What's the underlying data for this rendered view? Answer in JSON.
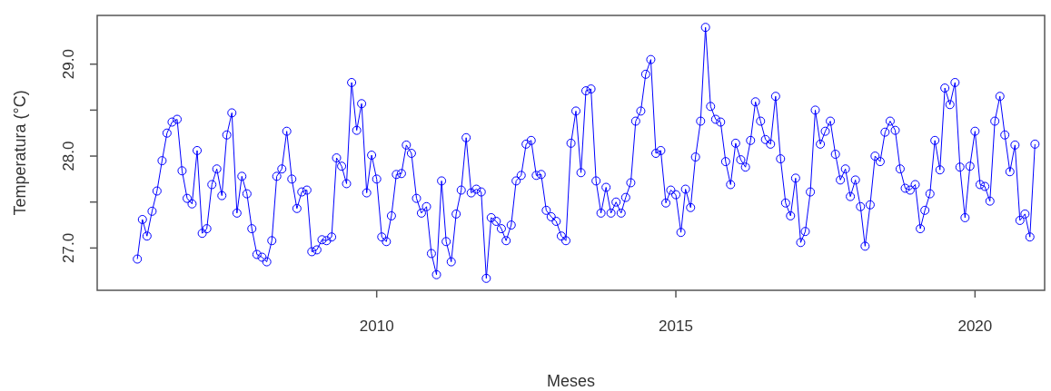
{
  "chart_data": {
    "type": "line",
    "xlabel": "Meses",
    "ylabel": "Temperatura (°C)",
    "x": [
      "2006-01",
      "2006-02",
      "2006-03",
      "2006-04",
      "2006-05",
      "2006-06",
      "2006-07",
      "2006-08",
      "2006-09",
      "2006-10",
      "2006-11",
      "2006-12",
      "2007-01",
      "2007-02",
      "2007-03",
      "2007-04",
      "2007-05",
      "2007-06",
      "2007-07",
      "2007-08",
      "2007-09",
      "2007-10",
      "2007-11",
      "2007-12",
      "2008-01",
      "2008-02",
      "2008-03",
      "2008-04",
      "2008-05",
      "2008-06",
      "2008-07",
      "2008-08",
      "2008-09",
      "2008-10",
      "2008-11",
      "2008-12",
      "2009-01",
      "2009-02",
      "2009-03",
      "2009-04",
      "2009-05",
      "2009-06",
      "2009-07",
      "2009-08",
      "2009-09",
      "2009-10",
      "2009-11",
      "2009-12",
      "2010-01",
      "2010-02",
      "2010-03",
      "2010-04",
      "2010-05",
      "2010-06",
      "2010-07",
      "2010-08",
      "2010-09",
      "2010-10",
      "2010-11",
      "2010-12",
      "2011-01",
      "2011-02",
      "2011-03",
      "2011-04",
      "2011-05",
      "2011-06",
      "2011-07",
      "2011-08",
      "2011-09",
      "2011-10",
      "2011-11",
      "2011-12",
      "2012-01",
      "2012-02",
      "2012-03",
      "2012-04",
      "2012-05",
      "2012-06",
      "2012-07",
      "2012-08",
      "2012-09",
      "2012-10",
      "2012-11",
      "2012-12",
      "2013-01",
      "2013-02",
      "2013-03",
      "2013-04",
      "2013-05",
      "2013-06",
      "2013-07",
      "2013-08",
      "2013-09",
      "2013-10",
      "2013-11",
      "2013-12",
      "2014-01",
      "2014-02",
      "2014-03",
      "2014-04",
      "2014-05",
      "2014-06",
      "2014-07",
      "2014-08",
      "2014-09",
      "2014-10",
      "2014-11",
      "2014-12",
      "2015-01",
      "2015-02",
      "2015-03",
      "2015-04",
      "2015-05",
      "2015-06",
      "2015-07",
      "2015-08",
      "2015-09",
      "2015-10",
      "2015-11",
      "2015-12",
      "2016-01",
      "2016-02",
      "2016-03",
      "2016-04",
      "2016-05",
      "2016-06",
      "2016-07",
      "2016-08",
      "2016-09",
      "2016-10",
      "2016-11",
      "2016-12",
      "2017-01",
      "2017-02",
      "2017-03",
      "2017-04",
      "2017-05",
      "2017-06",
      "2017-07",
      "2017-08",
      "2017-09",
      "2017-10",
      "2017-11",
      "2017-12",
      "2018-01",
      "2018-02",
      "2018-03",
      "2018-04",
      "2018-05",
      "2018-06",
      "2018-07",
      "2018-08",
      "2018-09",
      "2018-10",
      "2018-11",
      "2018-12",
      "2019-01",
      "2019-02",
      "2019-03",
      "2019-04",
      "2019-05",
      "2019-06",
      "2019-07",
      "2019-08",
      "2019-09",
      "2019-10",
      "2019-11",
      "2019-12",
      "2020-01",
      "2020-02",
      "2020-03",
      "2020-04",
      "2020-05",
      "2020-06",
      "2020-07",
      "2020-08",
      "2020-09",
      "2020-10",
      "2020-11",
      "2020-12",
      "2021-01"
    ],
    "series": [
      {
        "color": "#0000ff",
        "values": [
          26.88,
          27.31,
          27.13,
          27.4,
          27.62,
          27.95,
          28.25,
          28.37,
          28.4,
          27.84,
          27.54,
          27.48,
          28.06,
          27.16,
          27.21,
          27.69,
          27.86,
          27.57,
          28.23,
          28.47,
          27.38,
          27.78,
          27.59,
          27.21,
          26.93,
          26.9,
          26.85,
          27.08,
          27.78,
          27.86,
          28.27,
          27.75,
          27.43,
          27.61,
          27.63,
          26.96,
          26.98,
          27.09,
          27.08,
          27.12,
          27.98,
          27.89,
          27.7,
          28.8,
          28.28,
          28.57,
          27.6,
          28.01,
          27.75,
          27.12,
          27.07,
          27.35,
          27.8,
          27.81,
          28.12,
          28.03,
          27.54,
          27.38,
          27.45,
          26.94,
          26.71,
          27.73,
          27.07,
          26.85,
          27.37,
          27.63,
          28.2,
          27.6,
          27.64,
          27.61,
          26.67,
          27.33,
          27.29,
          27.21,
          27.08,
          27.25,
          27.73,
          27.79,
          28.13,
          28.17,
          27.79,
          27.8,
          27.41,
          27.34,
          27.29,
          27.13,
          27.08,
          28.14,
          28.49,
          27.82,
          28.71,
          28.73,
          27.73,
          27.38,
          27.66,
          27.38,
          27.5,
          27.38,
          27.55,
          27.71,
          28.38,
          28.49,
          28.89,
          29.05,
          28.03,
          28.06,
          27.49,
          27.63,
          27.58,
          27.17,
          27.64,
          27.44,
          27.99,
          28.38,
          29.4,
          28.54,
          28.4,
          28.37,
          27.94,
          27.69,
          28.14,
          27.96,
          27.88,
          28.17,
          28.59,
          28.38,
          28.18,
          28.13,
          28.65,
          27.97,
          27.49,
          27.35,
          27.76,
          27.06,
          27.18,
          27.61,
          28.5,
          28.13,
          28.27,
          28.38,
          28.02,
          27.74,
          27.86,
          27.56,
          27.74,
          27.45,
          27.02,
          27.47,
          28.0,
          27.94,
          28.26,
          28.38,
          28.28,
          27.86,
          27.65,
          27.63,
          27.69,
          27.21,
          27.41,
          27.59,
          28.17,
          27.85,
          28.74,
          28.56,
          28.8,
          27.88,
          27.33,
          27.89,
          28.27,
          27.69,
          27.67,
          27.51,
          28.38,
          28.65,
          28.23,
          27.83,
          28.12,
          27.3,
          27.37,
          27.12,
          28.13
        ]
      }
    ],
    "xlim": [
      "2005-05",
      "2021-03"
    ],
    "xticks": [
      {
        "value": "2010-01",
        "label": "2010"
      },
      {
        "value": "2015-01",
        "label": "2015"
      },
      {
        "value": "2020-01",
        "label": "2020"
      }
    ],
    "ylim": [
      26.54,
      29.53
    ],
    "yticks": [
      {
        "value": 27,
        "label": "27.0"
      },
      {
        "value": 27.5,
        "label": null
      },
      {
        "value": 28,
        "label": "28.0"
      },
      {
        "value": 28.5,
        "label": null
      },
      {
        "value": 29,
        "label": "29.0"
      }
    ],
    "grid": false,
    "marker": "circle",
    "line_style": "solid"
  }
}
